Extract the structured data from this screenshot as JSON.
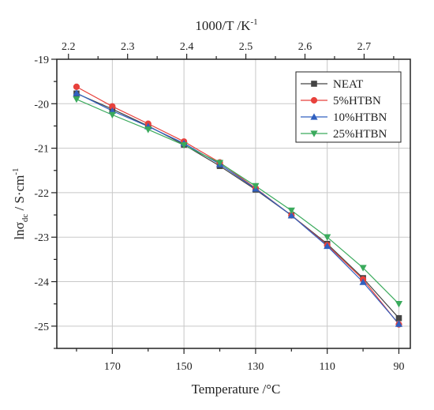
{
  "chart_data": {
    "type": "line",
    "xlabel_bottom": "Temperature /°C",
    "xlabel_top": "1000/T /K",
    "xlabel_top_sup": "-1",
    "ylabel_main": "lnσ",
    "ylabel_sub": "dc",
    "ylabel_unit": " / S·cm",
    "ylabel_sup": "-1",
    "x": [
      180,
      170,
      160,
      150,
      140,
      130,
      120,
      110,
      100,
      90
    ],
    "xlim": [
      185.5,
      86.8
    ],
    "x_ticks": [
      170,
      150,
      130,
      110,
      90
    ],
    "top_axis": {
      "ticks": [
        2.2,
        2.3,
        2.4,
        2.5,
        2.6,
        2.7
      ]
    },
    "ylim": [
      -25.5,
      -19
    ],
    "y_ticks": [
      -25,
      -24,
      -23,
      -22,
      -21,
      -20,
      -19
    ],
    "grid": true,
    "legend_position": "top-right",
    "series": [
      {
        "name": "NEAT",
        "color": "#444444",
        "marker": "square",
        "values": [
          -19.77,
          -20.12,
          -20.5,
          -20.92,
          -21.4,
          -21.93,
          -22.51,
          -23.15,
          -23.92,
          -24.82
        ]
      },
      {
        "name": "5%HTBN",
        "color": "#e8413c",
        "marker": "circle",
        "values": [
          -19.62,
          -20.06,
          -20.45,
          -20.85,
          -21.32,
          -21.9,
          -22.51,
          -23.18,
          -23.95,
          -24.96
        ]
      },
      {
        "name": "10%HTBN",
        "color": "#3060c0",
        "marker": "triangle-up",
        "values": [
          -19.76,
          -20.16,
          -20.51,
          -20.89,
          -21.36,
          -21.91,
          -22.51,
          -23.2,
          -24.01,
          -24.95
        ]
      },
      {
        "name": "25%HTBN",
        "color": "#3aaa5c",
        "marker": "triangle-down",
        "values": [
          -19.9,
          -20.25,
          -20.58,
          -20.93,
          -21.33,
          -21.85,
          -22.4,
          -23.0,
          -23.69,
          -24.5
        ]
      }
    ]
  }
}
